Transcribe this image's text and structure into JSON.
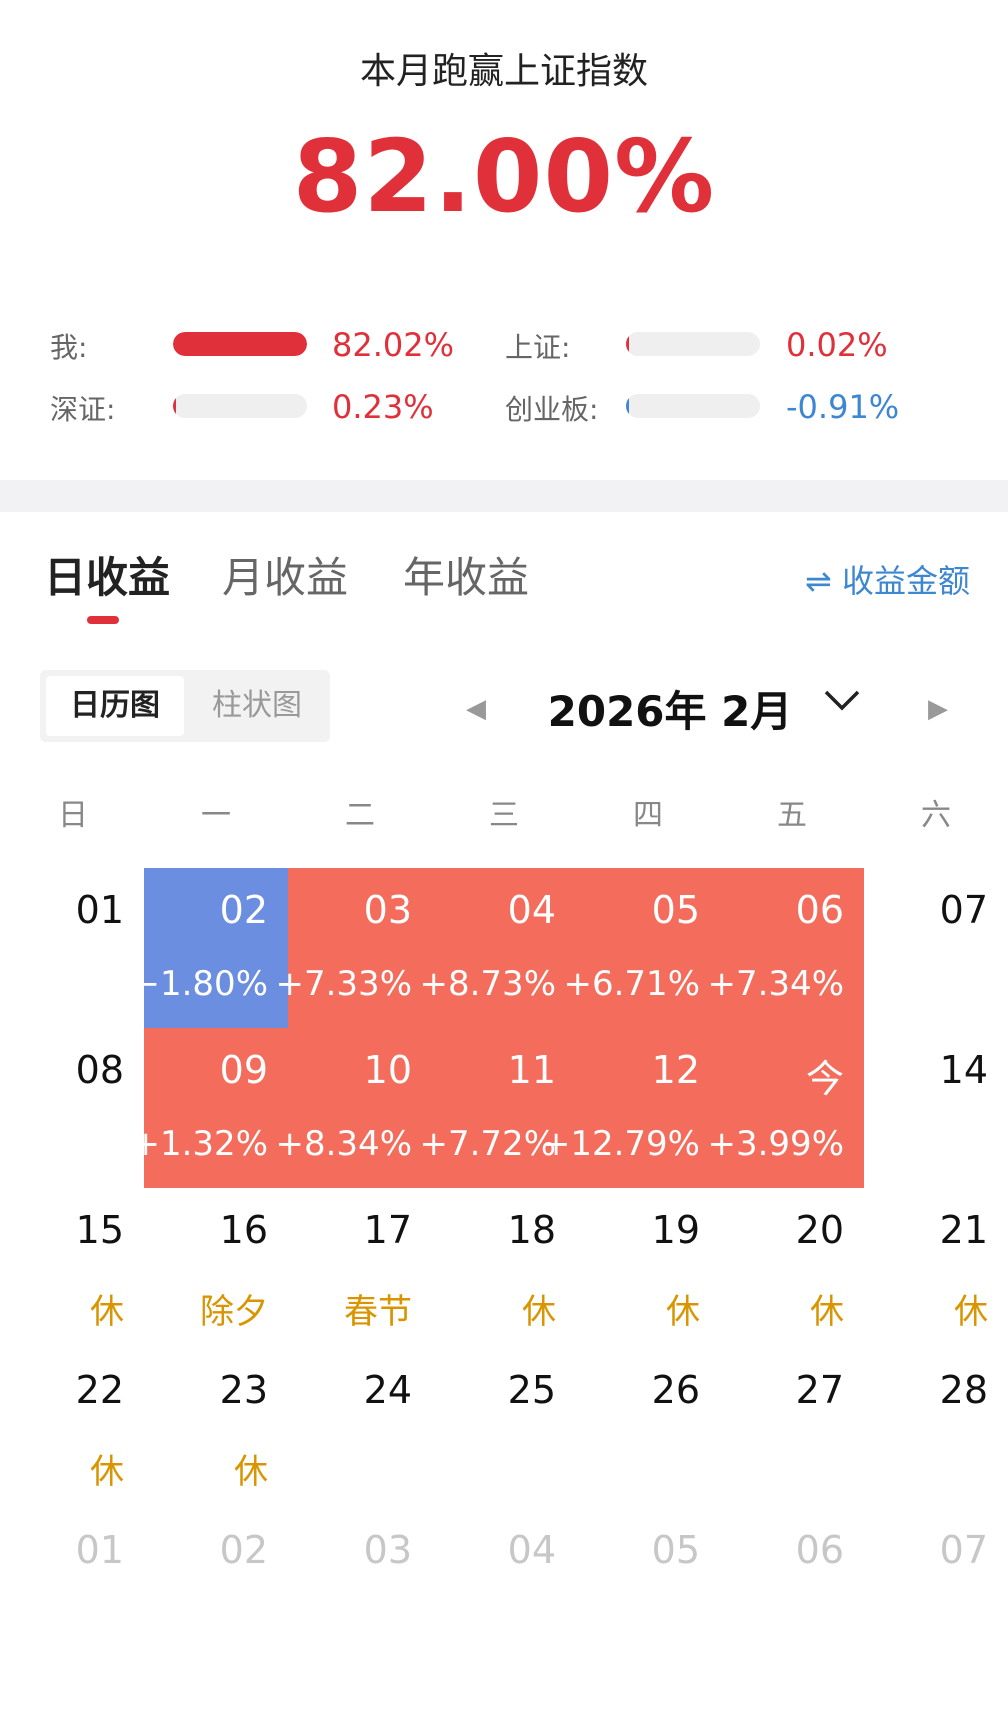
{
  "header": {
    "title": "本月跑赢上证指数",
    "percent": "82.00%"
  },
  "comparison": [
    {
      "label": "我:",
      "value": "82.02%",
      "fill_fraction": 1.0,
      "color": "#e0313b"
    },
    {
      "label": "上证:",
      "value": "0.02%",
      "fill_fraction": 0.01,
      "color": "#e0313b"
    },
    {
      "label": "深证:",
      "value": "0.23%",
      "fill_fraction": 0.01,
      "color": "#e0313b"
    },
    {
      "label": "创业板:",
      "value": "-0.91%",
      "fill_fraction": 0.01,
      "color": "#3d86d1"
    }
  ],
  "tabs": [
    {
      "label": "日收益",
      "active": true
    },
    {
      "label": "月收益",
      "active": false
    },
    {
      "label": "年收益",
      "active": false
    }
  ],
  "amount_toggle": {
    "icon": "swap-icon",
    "label": "收益金额"
  },
  "view_toggle": {
    "calendar": "日历图",
    "bar": "柱状图",
    "selected": "日历图"
  },
  "month_nav": {
    "title": "2026年 2月",
    "prev_icon": "caret-left-icon",
    "next_icon": "caret-right-icon",
    "dropdown_icon": "chevron-down-icon"
  },
  "weekdays": [
    "日",
    "一",
    "二",
    "三",
    "四",
    "五",
    "六"
  ],
  "colors": {
    "gain": "#f46c5c",
    "loss": "#6b8ee0",
    "holiday": "#d99400",
    "accent": "#e0313b",
    "blue": "#3d86d1"
  },
  "calendar": {
    "weeks": [
      [
        {
          "day": "01",
          "sub": "",
          "kind": "plain"
        },
        {
          "day": "02",
          "sub": "−1.80%",
          "kind": "down"
        },
        {
          "day": "03",
          "sub": "+7.33%",
          "kind": "up"
        },
        {
          "day": "04",
          "sub": "+8.73%",
          "kind": "up"
        },
        {
          "day": "05",
          "sub": "+6.71%",
          "kind": "up"
        },
        {
          "day": "06",
          "sub": "+7.34%",
          "kind": "up"
        },
        {
          "day": "07",
          "sub": "",
          "kind": "plain"
        }
      ],
      [
        {
          "day": "08",
          "sub": "",
          "kind": "plain"
        },
        {
          "day": "09",
          "sub": "+1.32%",
          "kind": "up"
        },
        {
          "day": "10",
          "sub": "+8.34%",
          "kind": "up"
        },
        {
          "day": "11",
          "sub": "+7.72%",
          "kind": "up"
        },
        {
          "day": "12",
          "sub": "+12.79%",
          "kind": "up"
        },
        {
          "day": "今",
          "sub": "+3.99%",
          "kind": "up"
        },
        {
          "day": "14",
          "sub": "",
          "kind": "plain"
        }
      ],
      [
        {
          "day": "15",
          "sub": "休",
          "kind": "holiday"
        },
        {
          "day": "16",
          "sub": "除夕",
          "kind": "holiday"
        },
        {
          "day": "17",
          "sub": "春节",
          "kind": "holiday"
        },
        {
          "day": "18",
          "sub": "休",
          "kind": "holiday"
        },
        {
          "day": "19",
          "sub": "休",
          "kind": "holiday"
        },
        {
          "day": "20",
          "sub": "休",
          "kind": "holiday"
        },
        {
          "day": "21",
          "sub": "休",
          "kind": "holiday"
        }
      ],
      [
        {
          "day": "22",
          "sub": "休",
          "kind": "holiday"
        },
        {
          "day": "23",
          "sub": "休",
          "kind": "holiday"
        },
        {
          "day": "24",
          "sub": "",
          "kind": "plain"
        },
        {
          "day": "25",
          "sub": "",
          "kind": "plain"
        },
        {
          "day": "26",
          "sub": "",
          "kind": "plain"
        },
        {
          "day": "27",
          "sub": "",
          "kind": "plain"
        },
        {
          "day": "28",
          "sub": "",
          "kind": "plain"
        }
      ],
      [
        {
          "day": "01",
          "sub": "",
          "kind": "next"
        },
        {
          "day": "02",
          "sub": "",
          "kind": "next"
        },
        {
          "day": "03",
          "sub": "",
          "kind": "next"
        },
        {
          "day": "04",
          "sub": "",
          "kind": "next"
        },
        {
          "day": "05",
          "sub": "",
          "kind": "next"
        },
        {
          "day": "06",
          "sub": "",
          "kind": "next"
        },
        {
          "day": "07",
          "sub": "",
          "kind": "next"
        }
      ]
    ]
  }
}
